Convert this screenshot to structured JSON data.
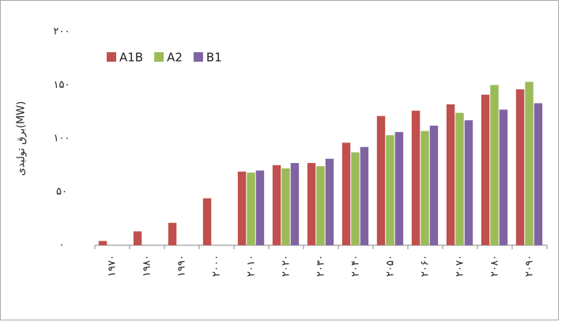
{
  "chart_data": {
    "type": "bar",
    "y_label": "برق تولیدی(MW)",
    "categories": [
      "۱۹۷۰",
      "۱۹۸۰",
      "۱۹۹۰",
      "۲۰۰۰",
      "۲۰۱۰",
      "۲۰۲۰",
      "۲۰۳۰",
      "۲۰۴۰",
      "۲۰۵۰",
      "۲۰۶۰",
      "۲۰۷۰",
      "۲۰۸۰",
      "۲۰۹۰"
    ],
    "series": [
      {
        "name": "A1B",
        "color": "#c0504d",
        "values": [
          4,
          13,
          21,
          44,
          69,
          75,
          77,
          96,
          121,
          126,
          132,
          141,
          146
        ]
      },
      {
        "name": "A2",
        "color": "#9bbb59",
        "values": [
          null,
          null,
          null,
          null,
          68,
          72,
          74,
          87,
          103,
          107,
          124,
          150,
          153
        ]
      },
      {
        "name": "B1",
        "color": "#8064a2",
        "values": [
          null,
          null,
          null,
          null,
          70,
          77,
          81,
          92,
          106,
          112,
          117,
          127,
          133
        ]
      }
    ],
    "ylim": [
      0,
      200
    ],
    "yticks": [
      {
        "value": 0,
        "label": "۰"
      },
      {
        "value": 50,
        "label": "۵۰"
      },
      {
        "value": 100,
        "label": "۱۰۰"
      },
      {
        "value": 150,
        "label": "۱۵۰"
      },
      {
        "value": 200,
        "label": "۲۰۰"
      }
    ],
    "legend": "top-left"
  }
}
